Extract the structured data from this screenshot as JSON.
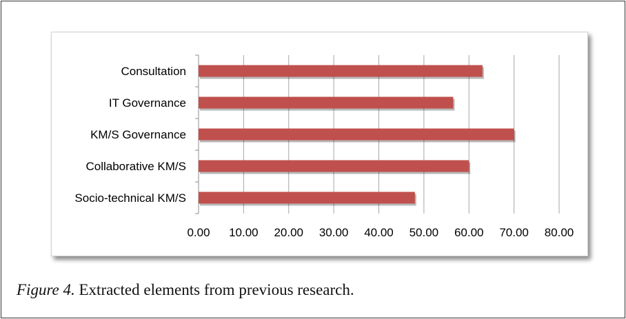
{
  "chart_data": {
    "type": "bar",
    "orientation": "horizontal",
    "categories": [
      "Consultation",
      "IT Governance",
      "KM/S Governance",
      "Collaborative KM/S",
      "Socio-technical KM/S"
    ],
    "values": [
      63.0,
      56.5,
      70.0,
      60.0,
      48.0
    ],
    "xlim": [
      0,
      80
    ],
    "xticks": [
      "0.00",
      "10.00",
      "20.00",
      "30.00",
      "40.00",
      "50.00",
      "60.00",
      "70.00",
      "80.00"
    ],
    "grid": "vertical",
    "bar_color": "#c0504d",
    "legend": "none"
  },
  "caption": {
    "label": "Figure 4.",
    "text": " Extracted elements from previous research."
  }
}
